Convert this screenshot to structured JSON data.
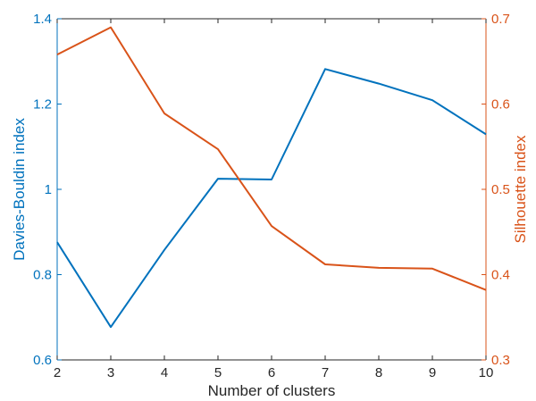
{
  "chart_data": {
    "type": "line",
    "title": "",
    "xlabel": "Number of clusters",
    "x": [
      2,
      3,
      4,
      5,
      6,
      7,
      8,
      9,
      10
    ],
    "xlim": [
      2,
      10
    ],
    "xticks": [
      "2",
      "3",
      "4",
      "5",
      "6",
      "7",
      "8",
      "9",
      "10"
    ],
    "grid": false,
    "legend": false,
    "y_left": {
      "label": "Davies-Bouldin index",
      "color": "#0072BD",
      "ylim": [
        0.6,
        1.4
      ],
      "ticks": [
        "0.6",
        "0.8",
        "1",
        "1.2",
        "1.4"
      ],
      "tick_values": [
        0.6,
        0.8,
        1.0,
        1.2,
        1.4
      ]
    },
    "y_right": {
      "label": "Silhouette index",
      "color": "#D95319",
      "ylim": [
        0.3,
        0.7
      ],
      "ticks": [
        "0.3",
        "0.4",
        "0.5",
        "0.6",
        "0.7"
      ],
      "tick_values": [
        0.3,
        0.4,
        0.5,
        0.6,
        0.7
      ]
    },
    "series": [
      {
        "axis": "left",
        "color": "#0072BD",
        "values": [
          0.876,
          0.677,
          0.858,
          1.025,
          1.023,
          1.282,
          1.248,
          1.209,
          1.129
        ]
      },
      {
        "axis": "right",
        "color": "#D95319",
        "values": [
          0.658,
          0.69,
          0.589,
          0.547,
          0.457,
          0.412,
          0.408,
          0.407,
          0.382
        ]
      }
    ]
  }
}
